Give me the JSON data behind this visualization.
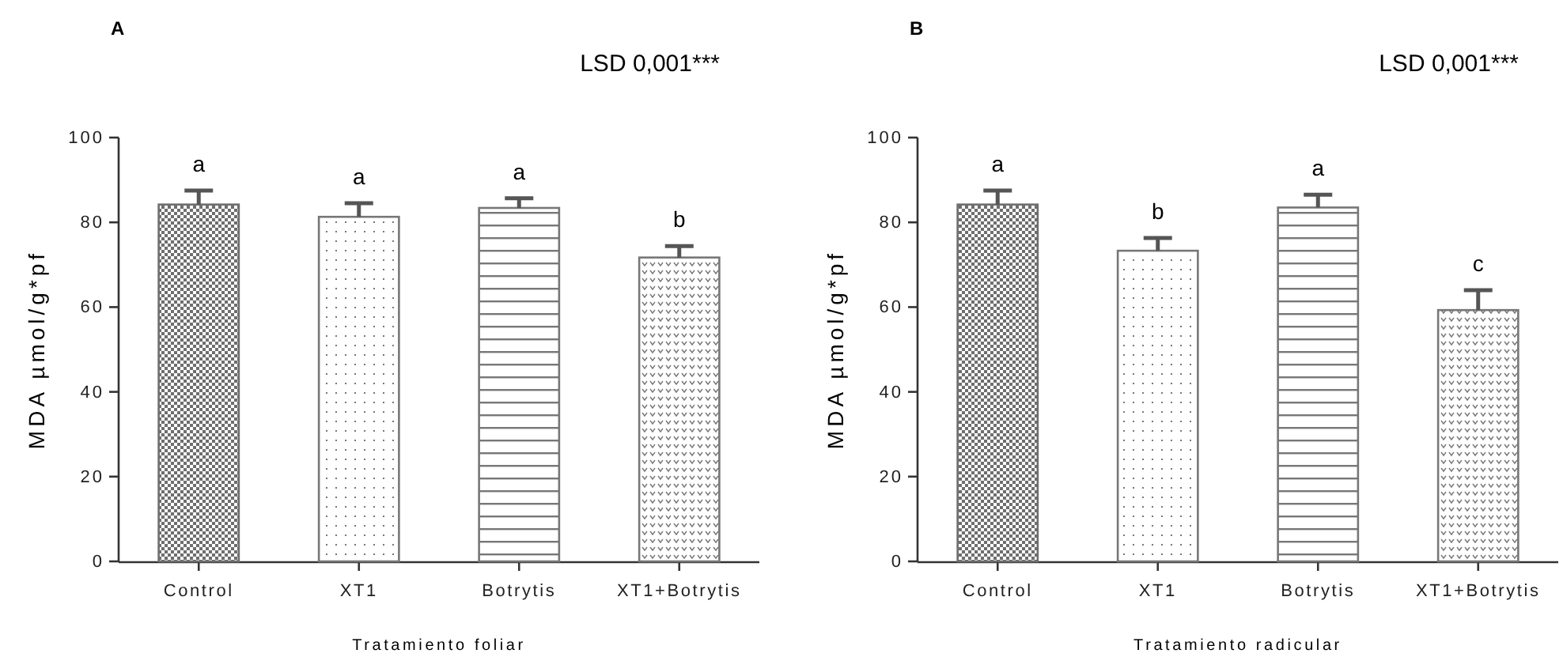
{
  "chart_data": [
    {
      "type": "bar",
      "title": "A",
      "xlabel": "Tratamiento foliar",
      "ylabel": "MDA µmol/g*pf",
      "categories": [
        "Control",
        "XT1",
        "Botrytis",
        "XT1+Botrytis"
      ],
      "values": [
        84.2,
        81.3,
        83.4,
        71.7
      ],
      "colors": [
        "#6e6e6e",
        "#777777",
        "#777777",
        "#777777"
      ],
      "errors": [
        [
          84.2,
          87.5
        ],
        [
          81.3,
          84.5
        ],
        [
          83.4,
          85.7
        ],
        [
          71.7,
          74.4
        ]
      ],
      "ylim": [
        0,
        100
      ],
      "yticks": [
        0,
        20,
        40,
        60,
        80,
        100
      ],
      "grid": false,
      "annotations": [
        {
          "text": "a",
          "x": "Control",
          "y": 87.5
        },
        {
          "text": "a",
          "x": "XT1",
          "y": 84.5
        },
        {
          "text": "a",
          "x": "Botrytis",
          "y": 85.7
        },
        {
          "text": "b",
          "x": "XT1+Botrytis",
          "y": 74.4
        },
        "LSD 0,001***"
      ]
    },
    {
      "type": "bar",
      "title": "B",
      "xlabel": "Tratamiento radicular",
      "ylabel": "MDA µmol/g*pf",
      "categories": [
        "Control",
        "XT1",
        "Botrytis",
        "XT1+Botrytis"
      ],
      "values": [
        84.2,
        73.3,
        83.5,
        59.3
      ],
      "colors": [
        "#6e6e6e",
        "#777777",
        "#777777",
        "#777777"
      ],
      "errors": [
        [
          84.2,
          87.5
        ],
        [
          73.3,
          76.3
        ],
        [
          83.5,
          86.5
        ],
        [
          59.3,
          64.0
        ]
      ],
      "ylim": [
        0,
        100
      ],
      "yticks": [
        0,
        20,
        40,
        60,
        80,
        100
      ],
      "grid": false,
      "annotations": [
        {
          "text": "a",
          "x": "Control",
          "y": 87.5
        },
        {
          "text": "b",
          "x": "XT1",
          "y": 76.3
        },
        {
          "text": "a",
          "x": "Botrytis",
          "y": 86.5
        },
        {
          "text": "c",
          "x": "XT1+Botrytis",
          "y": 64.0
        },
        "LSD 0,001***"
      ]
    }
  ]
}
